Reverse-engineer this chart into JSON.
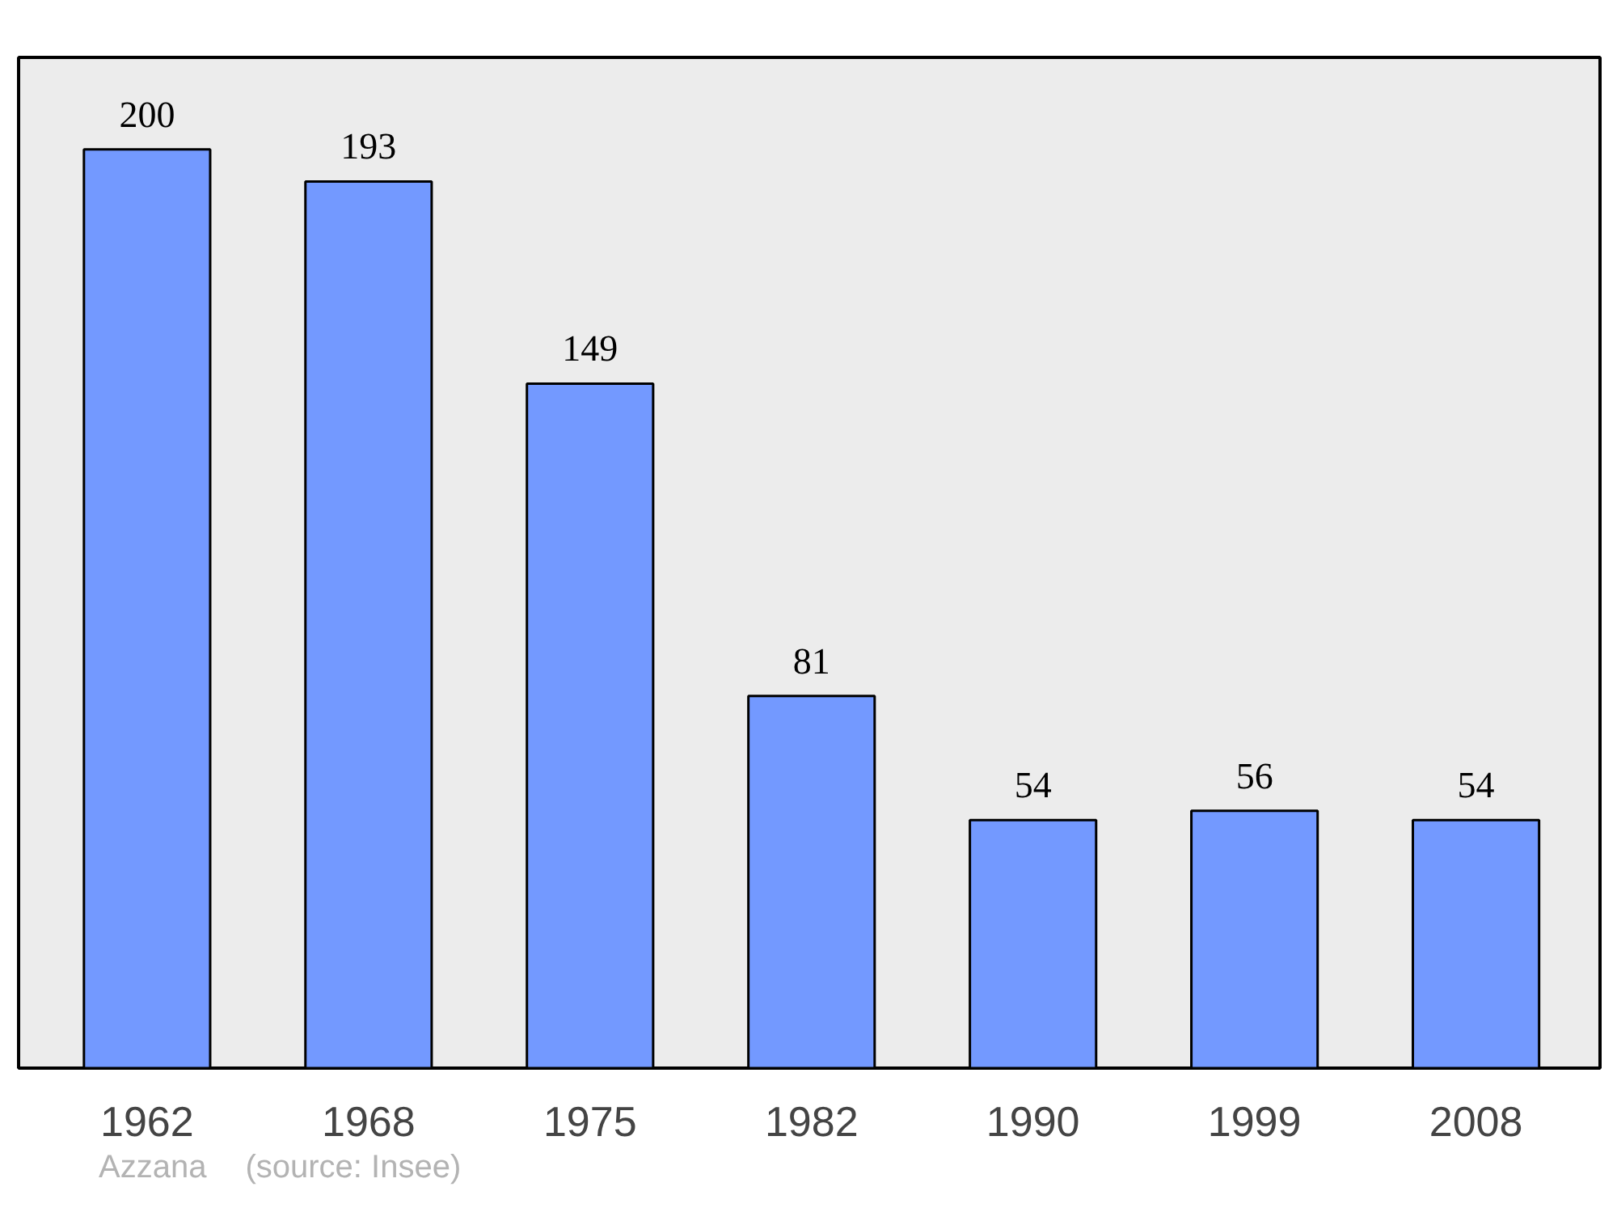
{
  "chart_data": {
    "type": "bar",
    "categories": [
      "1962",
      "1968",
      "1975",
      "1982",
      "1990",
      "1999",
      "2008"
    ],
    "values": [
      200,
      193,
      149,
      81,
      54,
      56,
      54
    ],
    "color": "#7399ff",
    "data_labels": true,
    "grid": false,
    "annotations": [
      "Azzana",
      "(source: Insee)"
    ]
  }
}
